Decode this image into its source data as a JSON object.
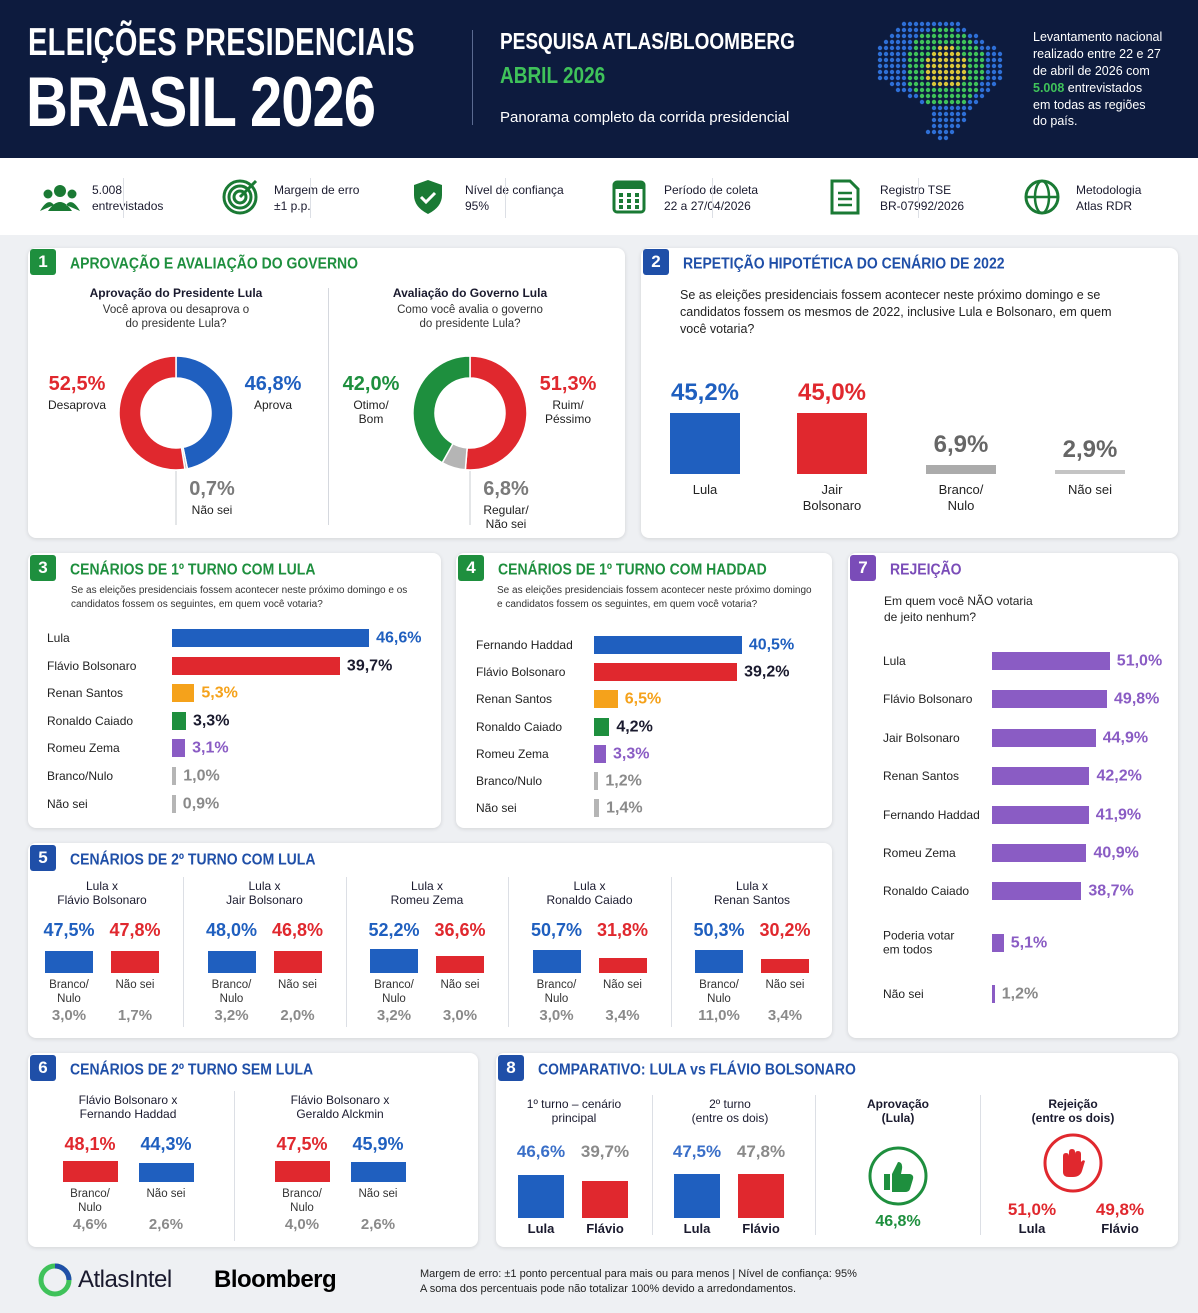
{
  "header": {
    "title1": "ELEIÇÕES PRESIDENCIAIS",
    "title2": "BRASIL 2026",
    "survey": "PESQUISA ATLAS/BLOOMBERG",
    "date": "ABRIL 2026",
    "subtitle": "Panorama completo da corrida presidencial",
    "note1": "Levantamento nacional\nrealizado entre 22 e 27\nde abril de 2026 com\n",
    "highlight": "5.008",
    "note2": " entrevistados\nem todas as regiões\ndo país."
  },
  "stats": [
    {
      "text": "5.008\nentrevistados"
    },
    {
      "text": "Margem de erro\n±1 p.p."
    },
    {
      "text": "Nível de confiança\n95%"
    },
    {
      "text": "Período de coleta\n22 a 27/04/2026"
    },
    {
      "text": "Registro TSE\nBR-07992/2026"
    },
    {
      "text": "Metodologia\nAtlas RDR"
    }
  ],
  "s1": {
    "num": "1",
    "title": "APROVAÇÃO E AVALIAÇÃO DO GOVERNO",
    "accent": "#1e8f3e",
    "charts": [
      {
        "title": "Aprovação do Presidente Lula",
        "question": "Você aprova ou desaprova o\ndo presidente Lula?",
        "slices": [
          {
            "label": "Aprova",
            "value": 46.8,
            "value_label": "46,8%",
            "color": "#1f5fbf"
          },
          {
            "label": "Não sei",
            "value": 0.7,
            "value_label": "0,7%",
            "color": "#b5b5b5"
          },
          {
            "label": "Desaprova",
            "value": 52.5,
            "value_label": "52,5%",
            "color": "#e0282e"
          }
        ]
      },
      {
        "title": "Avaliação do Governo Lula",
        "question": "Como você avalia o governo\ndo presidente Lula?",
        "slices": [
          {
            "label": "Ruim/\nPéssimo",
            "value": 51.3,
            "value_label": "51,3%",
            "color": "#e0282e"
          },
          {
            "label": "Regular/\nNão sei",
            "value": 6.8,
            "value_label": "6,8%",
            "color": "#b5b5b5"
          },
          {
            "label": "Otimo/\nBom",
            "value": 42.0,
            "value_label": "42,0%",
            "color": "#1e8f3e"
          }
        ]
      }
    ]
  },
  "s2": {
    "num": "2",
    "title": "REPETIÇÃO HIPOTÉTICA DO CENÁRIO DE 2022",
    "accent": "#1f4fa8",
    "question": "Se as eleições presidenciais fossem acontecer neste próximo domingo e se candidatos fossem os mesmos de 2022, inclusive Lula e Bolsonaro, em quem você votaria?",
    "bars": [
      {
        "label": "Lula",
        "value": 45.2,
        "value_label": "45,2%",
        "color": "#1f5fbf"
      },
      {
        "label": "Jair\nBolsonaro",
        "value": 45.0,
        "value_label": "45,0%",
        "color": "#e0282e"
      },
      {
        "label": "Branco/\nNulo",
        "value": 6.9,
        "value_label": "6,9%",
        "color": "#ababab",
        "label_color": "#666666"
      },
      {
        "label": "Não sei",
        "value": 2.9,
        "value_label": "2,9%",
        "color": "#c4c4c4",
        "label_color": "#666666"
      }
    ]
  },
  "s3": {
    "num": "3",
    "title": "CENÁRIOS DE 1º TURNO COM LULA",
    "accent": "#1e8f3e",
    "question": "Se as eleições presidenciais fossem acontecer neste próximo domingo e os\ncandidatos fossem os seguintes, em quem você votaria?",
    "rows": [
      {
        "label": "Lula",
        "value": 46.6,
        "value_label": "46,6%",
        "color": "#1f5fbf"
      },
      {
        "label": "Flávio Bolsonaro",
        "value": 39.7,
        "value_label": "39,7%",
        "color": "#e0282e",
        "label_color": "#1a1a2e"
      },
      {
        "label": "Renan Santos",
        "value": 5.3,
        "value_label": "5,3%",
        "color": "#f5a21b"
      },
      {
        "label": "Ronaldo Caiado",
        "value": 3.3,
        "value_label": "3,3%",
        "color": "#1e8f3e",
        "label_color": "#1a1a2e"
      },
      {
        "label": "Romeu Zema",
        "value": 3.1,
        "value_label": "3,1%",
        "color": "#8a5cc4"
      },
      {
        "label": "Branco/Nulo",
        "value": 1.0,
        "value_label": "1,0%",
        "color": "#b5b5b5",
        "label_color": "#8a8a8a"
      },
      {
        "label": "Não sei",
        "value": 0.9,
        "value_label": "0,9%",
        "color": "#b5b5b5",
        "label_color": "#8a8a8a"
      }
    ]
  },
  "s4": {
    "num": "4",
    "title": "CENÁRIOS DE 1º TURNO COM HADDAD",
    "accent": "#1e8f3e",
    "question": "Se as eleições presidenciais fossem acontecer neste próximo domingo\ne candidatos fossem os seguintes, em quem você votaria?",
    "rows": [
      {
        "label": "Fernando Haddad",
        "value": 40.5,
        "value_label": "40,5%",
        "color": "#1f5fbf"
      },
      {
        "label": "Flávio Bolsonaro",
        "value": 39.2,
        "value_label": "39,2%",
        "color": "#e0282e",
        "label_color": "#1a1a2e"
      },
      {
        "label": "Renan Santos",
        "value": 6.5,
        "value_label": "6,5%",
        "color": "#f5a21b"
      },
      {
        "label": "Ronaldo Caiado",
        "value": 4.2,
        "value_label": "4,2%",
        "color": "#1e8f3e",
        "label_color": "#1a1a2e"
      },
      {
        "label": "Romeu Zema",
        "value": 3.3,
        "value_label": "3,3%",
        "color": "#8a5cc4"
      },
      {
        "label": "Branco/Nulo",
        "value": 1.2,
        "value_label": "1,2%",
        "color": "#b5b5b5",
        "label_color": "#8a8a8a"
      },
      {
        "label": "Não sei",
        "value": 1.4,
        "value_label": "1,4%",
        "color": "#b5b5b5",
        "label_color": "#8a8a8a"
      }
    ]
  },
  "s5": {
    "num": "5",
    "title": "CENÁRIOS DE 2º TURNO COM LULA",
    "accent": "#1f4fa8",
    "matchups": [
      {
        "title": "Lula x\nFlávio Bolsonaro",
        "a": {
          "value": 47.5,
          "value_label": "47,5%",
          "color": "#1f5fbf"
        },
        "b": {
          "value": 47.8,
          "value_label": "47,8%",
          "color": "#e0282e"
        },
        "others": [
          {
            "label": "Branco/\nNulo",
            "value": "3,0%"
          },
          {
            "label": "Não sei",
            "value": "1,7%"
          }
        ]
      },
      {
        "title": "Lula x\nJair Bolsonaro",
        "a": {
          "value": 48.0,
          "value_label": "48,0%",
          "color": "#1f5fbf"
        },
        "b": {
          "value": 46.8,
          "value_label": "46,8%",
          "color": "#e0282e"
        },
        "others": [
          {
            "label": "Branco/\nNulo",
            "value": "3,2%"
          },
          {
            "label": "Não sei",
            "value": "2,0%"
          }
        ]
      },
      {
        "title": "Lula x\nRomeu Zema",
        "a": {
          "value": 52.2,
          "value_label": "52,2%",
          "color": "#1f5fbf"
        },
        "b": {
          "value": 36.6,
          "value_label": "36,6%",
          "color": "#e0282e"
        },
        "others": [
          {
            "label": "Branco/\nNulo",
            "value": "3,2%"
          },
          {
            "label": "Não sei",
            "value": "3,0%"
          }
        ]
      },
      {
        "title": "Lula x\nRonaldo Caiado",
        "a": {
          "value": 50.7,
          "value_label": "50,7%",
          "color": "#1f5fbf"
        },
        "b": {
          "value": 31.8,
          "value_label": "31,8%",
          "color": "#e0282e"
        },
        "others": [
          {
            "label": "Branco/\nNulo",
            "value": "3,0%"
          },
          {
            "label": "Não sei",
            "value": "3,4%"
          }
        ]
      },
      {
        "title": "Lula x\nRenan Santos",
        "a": {
          "value": 50.3,
          "value_label": "50,3%",
          "color": "#1f5fbf"
        },
        "b": {
          "value": 30.2,
          "value_label": "30,2%",
          "color": "#e0282e"
        },
        "others": [
          {
            "label": "Branco/\nNulo",
            "value": "11,0%"
          },
          {
            "label": "Não sei",
            "value": "3,4%"
          }
        ]
      }
    ]
  },
  "s6": {
    "num": "6",
    "title": "CENÁRIOS DE 2º TURNO SEM LULA",
    "accent": "#1f4fa8",
    "matchups": [
      {
        "title": "Flávio Bolsonaro x\nFernando Haddad",
        "a": {
          "value": 48.1,
          "value_label": "48,1%",
          "color": "#e0282e"
        },
        "b": {
          "value": 44.3,
          "value_label": "44,3%",
          "color": "#1f5fbf"
        },
        "others": [
          {
            "label": "Branco/\nNulo",
            "value": "4,6%"
          },
          {
            "label": "Não sei",
            "value": "2,6%"
          }
        ]
      },
      {
        "title": "Flávio Bolsonaro x\nGeraldo Alckmin",
        "a": {
          "value": 47.5,
          "value_label": "47,5%",
          "color": "#e0282e"
        },
        "b": {
          "value": 45.9,
          "value_label": "45,9%",
          "color": "#1f5fbf"
        },
        "others": [
          {
            "label": "Branco/\nNulo",
            "value": "4,0%"
          },
          {
            "label": "Não sei",
            "value": "2,6%"
          }
        ]
      }
    ]
  },
  "s7": {
    "num": "7",
    "title": "REJEIÇÃO",
    "accent": "#7a4cb8",
    "question": "Em quem você NÃO votaria\nde jeito nenhum?",
    "rows": [
      {
        "label": "Lula",
        "value": 51.0,
        "value_label": "51,0%",
        "color": "#8a5cc4"
      },
      {
        "label": "Flávio Bolsonaro",
        "value": 49.8,
        "value_label": "49,8%",
        "color": "#8a5cc4"
      },
      {
        "label": "Jair Bolsonaro",
        "value": 44.9,
        "value_label": "44,9%",
        "color": "#8a5cc4"
      },
      {
        "label": "Renan Santos",
        "value": 42.2,
        "value_label": "42,2%",
        "color": "#8a5cc4"
      },
      {
        "label": "Fernando Haddad",
        "value": 41.9,
        "value_label": "41,9%",
        "color": "#8a5cc4"
      },
      {
        "label": "Romeu Zema",
        "value": 40.9,
        "value_label": "40,9%",
        "color": "#8a5cc4"
      },
      {
        "label": "Ronaldo Caiado",
        "value": 38.7,
        "value_label": "38,7%",
        "color": "#8a5cc4"
      },
      {
        "label": "Poderia votar\nem todos",
        "value": 5.1,
        "value_label": "5,1%",
        "color": "#8a5cc4"
      },
      {
        "label": "Não sei",
        "value": 1.2,
        "value_label": "1,2%",
        "color": "#8a5cc4",
        "label_color": "#8a8a8a"
      }
    ]
  },
  "s8": {
    "num": "8",
    "title": "COMPARATIVO: LULA vs FLÁVIO BOLSONARO",
    "accent": "#1f4fa8",
    "groups": [
      {
        "title": "1º turno – cenário\nprincipal",
        "bars": [
          {
            "name": "Lula",
            "value": 46.6,
            "value_label": "46,6%",
            "color": "#1f5fbf",
            "label_color": "#3a6fc8"
          },
          {
            "name": "Flávio",
            "value": 39.7,
            "value_label": "39,7%",
            "color": "#e0282e",
            "label_color": "#8a8a8a"
          }
        ]
      },
      {
        "title": "2º turno\n(entre os dois)",
        "bars": [
          {
            "name": "Lula",
            "value": 47.5,
            "value_label": "47,5%",
            "color": "#1f5fbf",
            "label_color": "#3a6fc8"
          },
          {
            "name": "Flávio",
            "value": 47.8,
            "value_label": "47,8%",
            "color": "#e0282e",
            "label_color": "#8a8a8a"
          }
        ]
      }
    ],
    "approval": {
      "title": "Aprovação\n(Lula)",
      "value": "46,8%"
    },
    "rejection": {
      "title": "Rejeição\n(entre os dois)",
      "items": [
        {
          "name": "Lula",
          "value": "51,0%"
        },
        {
          "name": "Flávio",
          "value": "49,8%"
        }
      ]
    }
  },
  "footer": {
    "logo1": "AtlasIntel",
    "logo2": "Bloomberg",
    "note": "Margem de erro: ±1 ponto percentual para mais ou para menos | Nível de confiança: 95%\nA soma dos percentuais pode não totalizar 100% devido a arredondamentos."
  }
}
